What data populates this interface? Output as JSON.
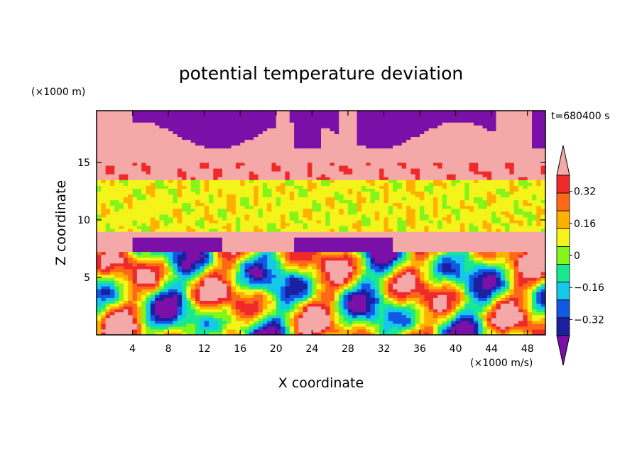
{
  "chart_data": {
    "type": "heatmap",
    "title": "potential temperature deviation",
    "xlabel": "X coordinate",
    "ylabel": "Z coordinate",
    "x_unit": "(×1000 m/s)",
    "y_unit": "(×1000 m)",
    "time_label": "t=680400 s",
    "xlim": [
      0,
      50
    ],
    "ylim": [
      0,
      19.5
    ],
    "x_ticks": [
      4,
      8,
      12,
      16,
      20,
      24,
      28,
      32,
      36,
      40,
      44,
      48
    ],
    "y_ticks": [
      5,
      10,
      15
    ],
    "colorbar": {
      "levels": [
        -0.4,
        -0.32,
        -0.24,
        -0.16,
        -0.08,
        0,
        0.08,
        0.16,
        0.24,
        0.32,
        0.4
      ],
      "tick_labels": [
        "0.32",
        "0.16",
        "0",
        "-0.16",
        "-0.32"
      ],
      "tick_values": [
        0.32,
        0.16,
        0,
        -0.16,
        -0.32
      ],
      "colors": [
        "#7a10a8",
        "#1a20a0",
        "#1158e6",
        "#16c8e8",
        "#18e890",
        "#84f41a",
        "#f4f41a",
        "#ffb000",
        "#ff6818",
        "#f02a2a",
        "#f4a8a8"
      ],
      "extend": "both"
    },
    "layers": [
      {
        "z_range": [
          17.5,
          19.5
        ],
        "description_value": -0.4
      },
      {
        "z_range": [
          15.2,
          17.5
        ],
        "value": 0.4
      },
      {
        "z_range": [
          13.5,
          15.2
        ],
        "value": 0.32
      },
      {
        "z_range": [
          9.2,
          13.5
        ],
        "value": 0.04
      },
      {
        "z_range": [
          7.2,
          9.2
        ],
        "value": 0.4
      },
      {
        "z_range": [
          0,
          7.2
        ],
        "value": "alternating -0.4 to 0.4"
      }
    ]
  },
  "colors": {
    "background": "#ffffff",
    "axis": "#000000"
  }
}
